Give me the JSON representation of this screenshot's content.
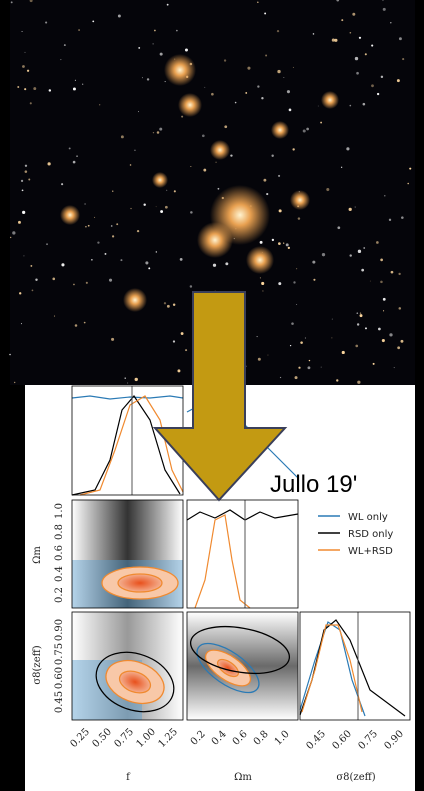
{
  "annotation": "Jullo 19'",
  "legend": [
    "WL only",
    "RSD only",
    "WL+RSD"
  ],
  "axis_labels": {
    "f": "f",
    "omega_m": "Ωm",
    "sigma8": "σ8(zeff)"
  },
  "row_ticks": {
    "omega_m": [
      "0.2",
      "0.4",
      "0.6",
      "0.8",
      "1.0"
    ],
    "sigma8": [
      "0.45",
      "0.60",
      "0.75",
      "0.90"
    ]
  },
  "col_ticks": {
    "f": [
      "0.25",
      "0.50",
      "0.75",
      "1.00",
      "1.25"
    ],
    "omega_m": [
      "0.2",
      "0.4",
      "0.6",
      "0.8",
      "1.0"
    ],
    "sigma8": [
      "0.45",
      "0.60",
      "0.75",
      "0.90"
    ]
  }
}
